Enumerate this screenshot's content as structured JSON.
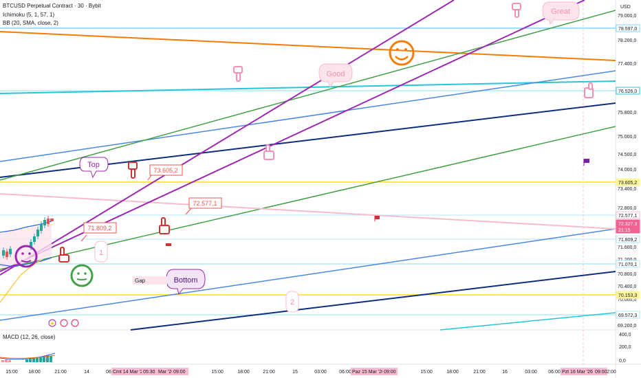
{
  "header": {
    "title": "BTCUSD Perpetual Contract · 30 · Bybit",
    "indicator1": "Ichimoku (5, 1, 57, 1)",
    "indicator2": "BB (20, SMA, close, 2)",
    "macd": "MACD (12, 26, close)",
    "currency": "USD"
  },
  "price_axis": {
    "ticks": [
      "79.000,0",
      "78.200,0",
      "77.400,0",
      "75.800,0",
      "75.000,0",
      "74.500,0",
      "74.000,0",
      "73.400,0",
      "72.800,0",
      "71.600,0",
      "71.200,0",
      "70.800,0",
      "70.400,0",
      "70.000,0",
      "69.200,0"
    ],
    "tags": [
      {
        "text": "78.597,0",
        "bg": "#ffffff",
        "fg": "#131722",
        "border": "#81d4fa"
      },
      {
        "text": "76.526,0",
        "bg": "#ffffff",
        "fg": "#131722",
        "border": "#26c6da"
      },
      {
        "text": "73.605,2",
        "bg": "#fff59d",
        "fg": "#131722",
        "border": "#fff59d"
      },
      {
        "text": "72.577,1",
        "bg": "#ffffff",
        "fg": "#131722",
        "border": "#f8bbd0"
      },
      {
        "text": "72.327,3",
        "bg": "#f06292",
        "fg": "#ffffff",
        "border": "#f06292"
      },
      {
        "text": "21:15",
        "bg": "#f06292",
        "fg": "#ffffff",
        "border": "#f06292"
      },
      {
        "text": "71.809,2",
        "bg": "#ffffff",
        "fg": "#131722",
        "border": "#b3e5fc"
      },
      {
        "text": "71.070,1",
        "bg": "#ffffff",
        "fg": "#131722",
        "border": "#b3e5fc"
      },
      {
        "text": "70.153,3",
        "bg": "#fff59d",
        "fg": "#131722",
        "border": "#fff59d"
      },
      {
        "text": "69.572,3",
        "bg": "#ffffff",
        "fg": "#131722",
        "border": "#b2ebf2"
      }
    ]
  },
  "macd_axis": {
    "ticks": [
      "400,0",
      "200,0",
      "0,0"
    ]
  },
  "time_axis": {
    "ticks": [
      "15:00",
      "18:00",
      "21:00",
      "14",
      "06",
      "12:00",
      "15:00",
      "18:00",
      "21:00",
      "15",
      "03:00",
      "06:00",
      "12:00",
      "15:00",
      "18:00",
      "21:00",
      "16",
      "03:00",
      "06:00",
      "2:00"
    ],
    "highlights": [
      "Cmt 14 Mar '26",
      "05:30",
      "Mar '26",
      "09:00",
      "Paz 15 Mar '26",
      "09:00",
      "Pzt 16 Mar '26",
      "09:00"
    ]
  },
  "annotations": {
    "price_labels": [
      "73.605,2",
      "72.577,1",
      "71.809,2"
    ],
    "callouts": [
      "Top",
      "Good",
      "Great",
      "Bottom",
      "1",
      "2",
      "Gap"
    ]
  },
  "colors": {
    "purple": "#9c27b0",
    "green": "#43a047",
    "blue": "#4a86e8",
    "navy": "#0d2c7f",
    "orange": "#f57c00",
    "teal": "#26c6da",
    "pink": "#f48fb1",
    "yellow": "#ffeb3b"
  },
  "icons": [
    "lightning-icon",
    "flag-icon",
    "flag-icon",
    "thumb-up-icon",
    "thumb-down-icon",
    "smiley-icon"
  ]
}
